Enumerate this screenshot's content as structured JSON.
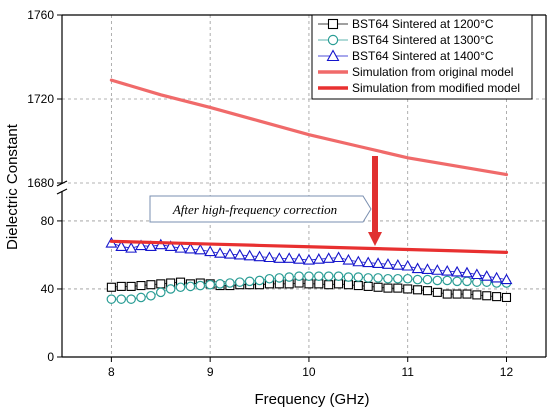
{
  "chart_data": {
    "type": "line",
    "xlabel": "Frequency (GHz)",
    "ylabel": "Dielectric Constant",
    "xlim": [
      7.5,
      12.4
    ],
    "x_ticks": [
      8,
      9,
      10,
      11,
      12
    ],
    "x_tick_labels": [
      "8",
      "9",
      "10",
      "11",
      "12"
    ],
    "y_axis_break": true,
    "y_lower_range": [
      0,
      97
    ],
    "y_upper_range": [
      1680,
      1760
    ],
    "y_lower_ticks": [
      0,
      40,
      80
    ],
    "y_lower_tick_labels": [
      "0",
      "40",
      "80"
    ],
    "y_upper_ticks": [
      1680,
      1720,
      1760
    ],
    "y_upper_tick_labels": [
      "1680",
      "1720",
      "1760"
    ],
    "grid": true,
    "legend_position": "top-right",
    "annotation": "After high-frequency correction",
    "series": [
      {
        "name": "BST64 Sintered at 1200°C",
        "marker": "square",
        "color": "#000000",
        "x": [
          8.0,
          8.1,
          8.2,
          8.3,
          8.4,
          8.5,
          8.6,
          8.7,
          8.8,
          8.9,
          9.0,
          9.1,
          9.2,
          9.3,
          9.4,
          9.5,
          9.6,
          9.7,
          9.8,
          9.9,
          10.0,
          10.1,
          10.2,
          10.3,
          10.4,
          10.5,
          10.6,
          10.7,
          10.8,
          10.9,
          11.0,
          11.1,
          11.2,
          11.3,
          11.4,
          11.5,
          11.6,
          11.7,
          11.8,
          11.9,
          12.0
        ],
        "y": [
          41,
          41.5,
          41.5,
          42,
          42.5,
          43,
          43.5,
          44,
          43,
          43.5,
          43,
          42,
          42,
          42.5,
          42.5,
          42.5,
          43,
          43,
          43,
          43.5,
          43,
          43,
          42.5,
          43,
          42.5,
          42,
          41.5,
          41,
          40.5,
          40.5,
          40,
          39.5,
          39,
          38,
          37,
          37,
          37,
          36.5,
          36,
          35.5,
          35
        ]
      },
      {
        "name": "BST64 Sintered at 1300°C",
        "marker": "circle",
        "color": "#2a9d95",
        "x": [
          8.0,
          8.1,
          8.2,
          8.3,
          8.4,
          8.5,
          8.6,
          8.7,
          8.8,
          8.9,
          9.0,
          9.1,
          9.2,
          9.3,
          9.4,
          9.5,
          9.6,
          9.7,
          9.8,
          9.9,
          10.0,
          10.1,
          10.2,
          10.3,
          10.4,
          10.5,
          10.6,
          10.7,
          10.8,
          10.9,
          11.0,
          11.1,
          11.2,
          11.3,
          11.4,
          11.5,
          11.6,
          11.7,
          11.8,
          11.9,
          12.0
        ],
        "y": [
          34,
          34,
          34,
          35,
          36,
          38,
          40,
          41,
          41.5,
          42,
          42.5,
          43,
          43.5,
          44,
          44.5,
          45,
          46,
          46.5,
          47,
          47.5,
          47.5,
          47.5,
          47.5,
          47.5,
          47,
          47,
          46.5,
          46.5,
          46,
          46,
          46,
          45.5,
          45.5,
          45,
          45,
          44.5,
          44.5,
          44,
          44,
          43.5,
          43.5
        ]
      },
      {
        "name": "BST64 Sintered at 1400°C",
        "marker": "triangle",
        "color": "#1515cc",
        "x": [
          8.0,
          8.1,
          8.2,
          8.3,
          8.4,
          8.5,
          8.6,
          8.7,
          8.8,
          8.9,
          9.0,
          9.1,
          9.2,
          9.3,
          9.4,
          9.5,
          9.6,
          9.7,
          9.8,
          9.9,
          10.0,
          10.1,
          10.2,
          10.3,
          10.4,
          10.5,
          10.6,
          10.7,
          10.8,
          10.9,
          11.0,
          11.1,
          11.2,
          11.3,
          11.4,
          11.5,
          11.6,
          11.7,
          11.8,
          11.9,
          12.0
        ],
        "y": [
          67,
          65,
          64,
          65.5,
          65,
          66,
          65,
          64,
          63.5,
          63,
          62,
          61,
          60.5,
          60,
          59.5,
          59,
          58.5,
          58,
          58,
          57.5,
          57,
          57.5,
          58,
          58.5,
          57,
          56,
          55.5,
          55,
          54.5,
          54,
          53.5,
          52,
          51.5,
          51,
          50.5,
          50,
          49.5,
          48.5,
          47.5,
          46.5,
          45.5
        ]
      },
      {
        "name": "Simulation from original model",
        "marker": "none",
        "color": "#f06a6a",
        "x": [
          8.0,
          8.5,
          9.0,
          9.5,
          10.0,
          10.5,
          11.0,
          11.5,
          12.0
        ],
        "y": [
          1729,
          1722,
          1716,
          1709.5,
          1703,
          1697.5,
          1692,
          1688,
          1684
        ]
      },
      {
        "name": "Simulation from modified model",
        "marker": "none",
        "color": "#e83030",
        "x": [
          8.0,
          8.5,
          9.0,
          9.5,
          10.0,
          10.5,
          11.0,
          11.5,
          12.0
        ],
        "y": [
          68,
          67.2,
          66.4,
          65.6,
          64.8,
          64.0,
          63.2,
          62.4,
          61.5
        ]
      }
    ]
  }
}
